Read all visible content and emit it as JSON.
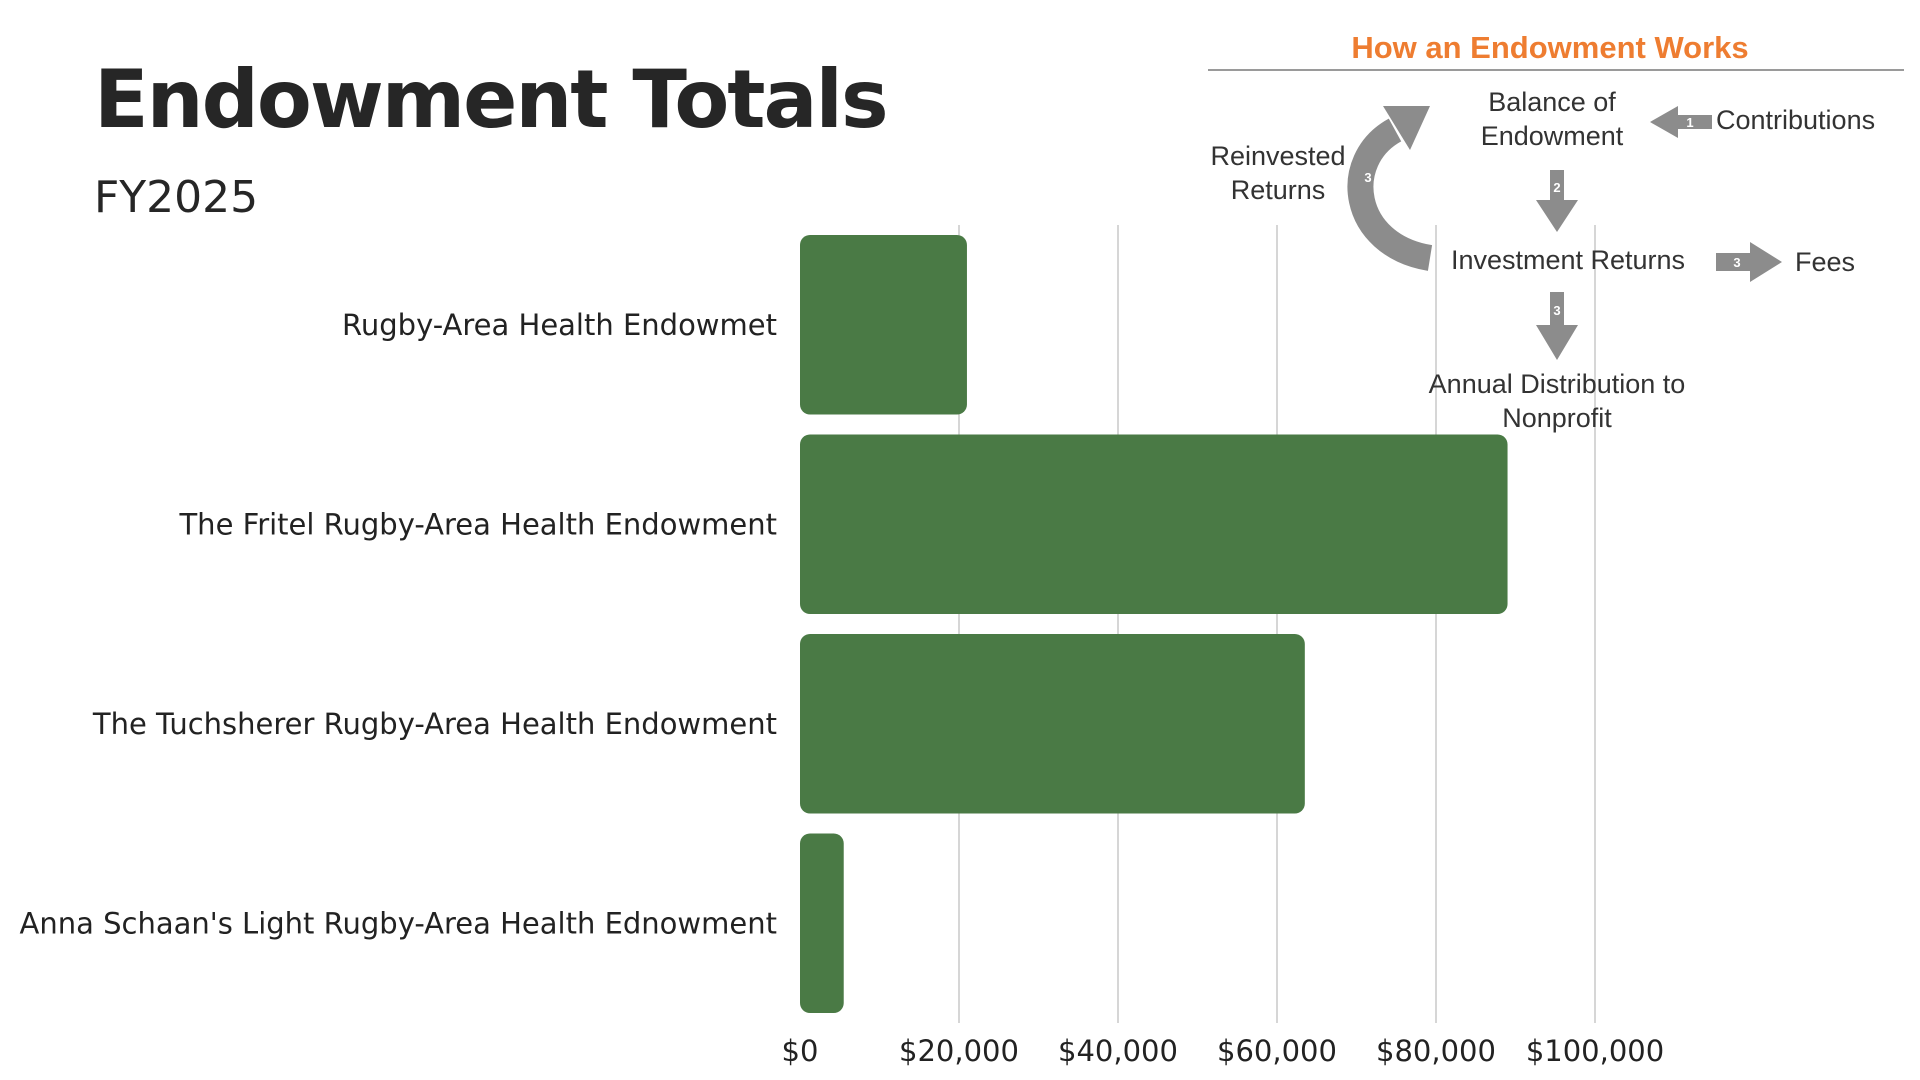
{
  "header": {
    "title": "Endowment Totals",
    "subtitle": "FY2025"
  },
  "chart_data": {
    "type": "bar",
    "orientation": "horizontal",
    "title": "Endowment Totals",
    "subtitle": "FY2025",
    "categories": [
      "Rugby-Area Health Endowmet",
      "The Fritel Rugby-Area Health Endowment",
      "The Tuchsherer Rugby-Area Health Endowment",
      "Anna Schaan's Light Rugby-Area Health Ednowment"
    ],
    "values": [
      21000,
      89000,
      63500,
      5500
    ],
    "xlim": [
      0,
      100000
    ],
    "x_ticks": [
      "$0",
      "$20,000",
      "$40,000",
      "$60,000",
      "$80,000",
      "$100,000"
    ],
    "grid": "vertical",
    "bar_color": "#4a7a45"
  },
  "diagram": {
    "title": "How an Endowment Works",
    "title_color": "#ee7d31",
    "nodes": {
      "balance_line1": "Balance of",
      "balance_line2": "Endowment",
      "contributions": "Contributions",
      "reinvested_line1": "Reinvested",
      "reinvested_line2": "Returns",
      "investment_returns": "Investment Returns",
      "fees": "Fees",
      "distribution_line1": "Annual Distribution to",
      "distribution_line2": "Nonprofit"
    },
    "arrow_numbers": {
      "contributions": "1",
      "balance_to_returns": "2",
      "reinvest": "3",
      "fees": "3",
      "distribution": "3"
    },
    "arrow_color": "#8c8c8c"
  }
}
